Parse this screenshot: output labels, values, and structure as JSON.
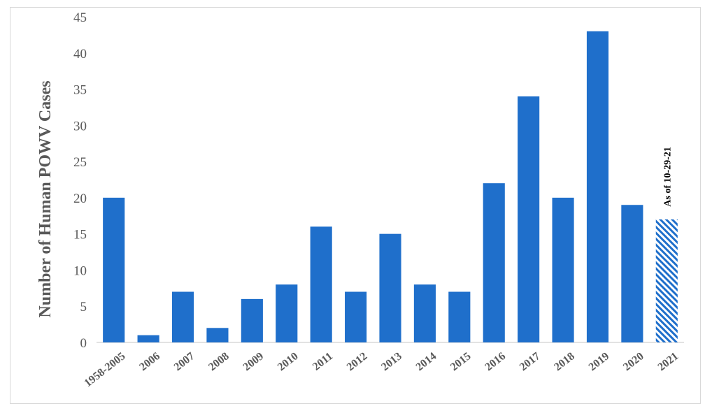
{
  "chart_data": {
    "type": "bar",
    "title": "",
    "xlabel": "",
    "ylabel": "Number of  Human POWV Cases",
    "ylim": [
      0,
      45
    ],
    "yticks": [
      0,
      5,
      10,
      15,
      20,
      25,
      30,
      35,
      40,
      45
    ],
    "grid": false,
    "legend": "none",
    "categories": [
      "1958-2005",
      "2006",
      "2007",
      "2008",
      "2009",
      "2010",
      "2011",
      "2012",
      "2013",
      "2014",
      "2015",
      "2016",
      "2017",
      "2018",
      "2019",
      "2020",
      "2021"
    ],
    "values": [
      20,
      1,
      7,
      2,
      6,
      8,
      16,
      7,
      15,
      8,
      7,
      22,
      34,
      20,
      43,
      19,
      17
    ],
    "partial_category": "2021",
    "annotation": "As of 10-29-21",
    "colors": {
      "bar": "#1f6fcb",
      "axis": "#d9d9d9",
      "text": "#595959"
    }
  }
}
